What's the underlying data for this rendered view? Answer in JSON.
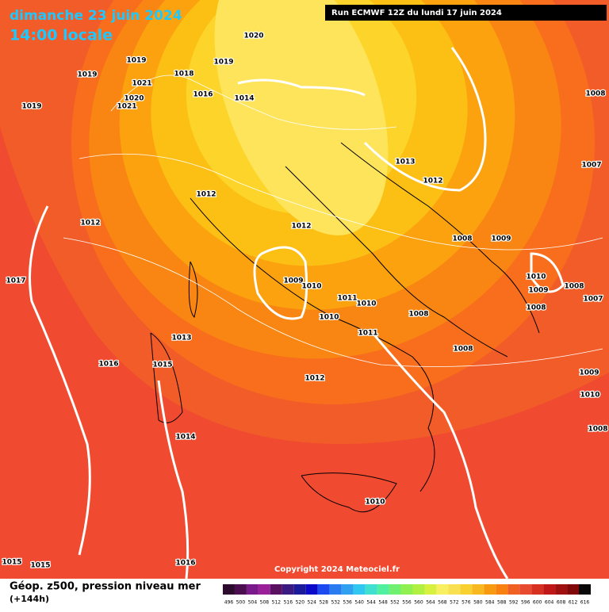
{
  "header": {
    "title": "dimanche 23 juin 2024",
    "subtitle": "14:00 locale",
    "run": "Run ECMWF 12Z du lundi 17 juin 2024"
  },
  "isobar_labels": [
    1020,
    1019,
    1019,
    1019,
    1018,
    1021,
    1016,
    1014,
    1020,
    1021,
    1019,
    1008,
    1013,
    1012,
    1007,
    1012,
    1012,
    1012,
    1008,
    1009,
    1017,
    1009,
    1010,
    1010,
    1009,
    1008,
    1007,
    1011,
    1010,
    1008,
    1010,
    1008,
    1013,
    1011,
    1008,
    1016,
    1015,
    1009,
    1012,
    1010,
    1014,
    1008,
    1010,
    1015,
    1015,
    1016
  ],
  "copyright": "Copyright 2024 Meteociel.fr",
  "legend": {
    "title": "Géop. z500, pression niveau mer",
    "lead": "(+144h)",
    "scale": [
      {
        "value": 496,
        "color": "#2c0b2e"
      },
      {
        "value": 500,
        "color": "#4b0f4f"
      },
      {
        "value": 504,
        "color": "#7a1a8a"
      },
      {
        "value": 508,
        "color": "#9a209a"
      },
      {
        "value": 512,
        "color": "#5a1060"
      },
      {
        "value": 516,
        "color": "#3a1a80"
      },
      {
        "value": 520,
        "color": "#1a1a9a"
      },
      {
        "value": 524,
        "color": "#0a0ac8"
      },
      {
        "value": 528,
        "color": "#1a4af0"
      },
      {
        "value": 532,
        "color": "#2a7af0"
      },
      {
        "value": 536,
        "color": "#30a0f0"
      },
      {
        "value": 540,
        "color": "#30c8f0"
      },
      {
        "value": 544,
        "color": "#40e0d0"
      },
      {
        "value": 548,
        "color": "#50f0a0"
      },
      {
        "value": 552,
        "color": "#70f070"
      },
      {
        "value": 556,
        "color": "#90f050"
      },
      {
        "value": 560,
        "color": "#b0f040"
      },
      {
        "value": 564,
        "color": "#d8f040"
      },
      {
        "value": 568,
        "color": "#f8f060"
      },
      {
        "value": 572,
        "color": "#f8e050"
      },
      {
        "value": 576,
        "color": "#f8d030"
      },
      {
        "value": 580,
        "color": "#f8b820"
      },
      {
        "value": 584,
        "color": "#f89a10"
      },
      {
        "value": 588,
        "color": "#f88010"
      },
      {
        "value": 592,
        "color": "#f06020"
      },
      {
        "value": 596,
        "color": "#e84a30"
      },
      {
        "value": 600,
        "color": "#d83020"
      },
      {
        "value": 604,
        "color": "#c01818"
      },
      {
        "value": 608,
        "color": "#a01010"
      },
      {
        "value": 612,
        "color": "#800808"
      },
      {
        "value": 616,
        "color": "#080808"
      }
    ]
  }
}
